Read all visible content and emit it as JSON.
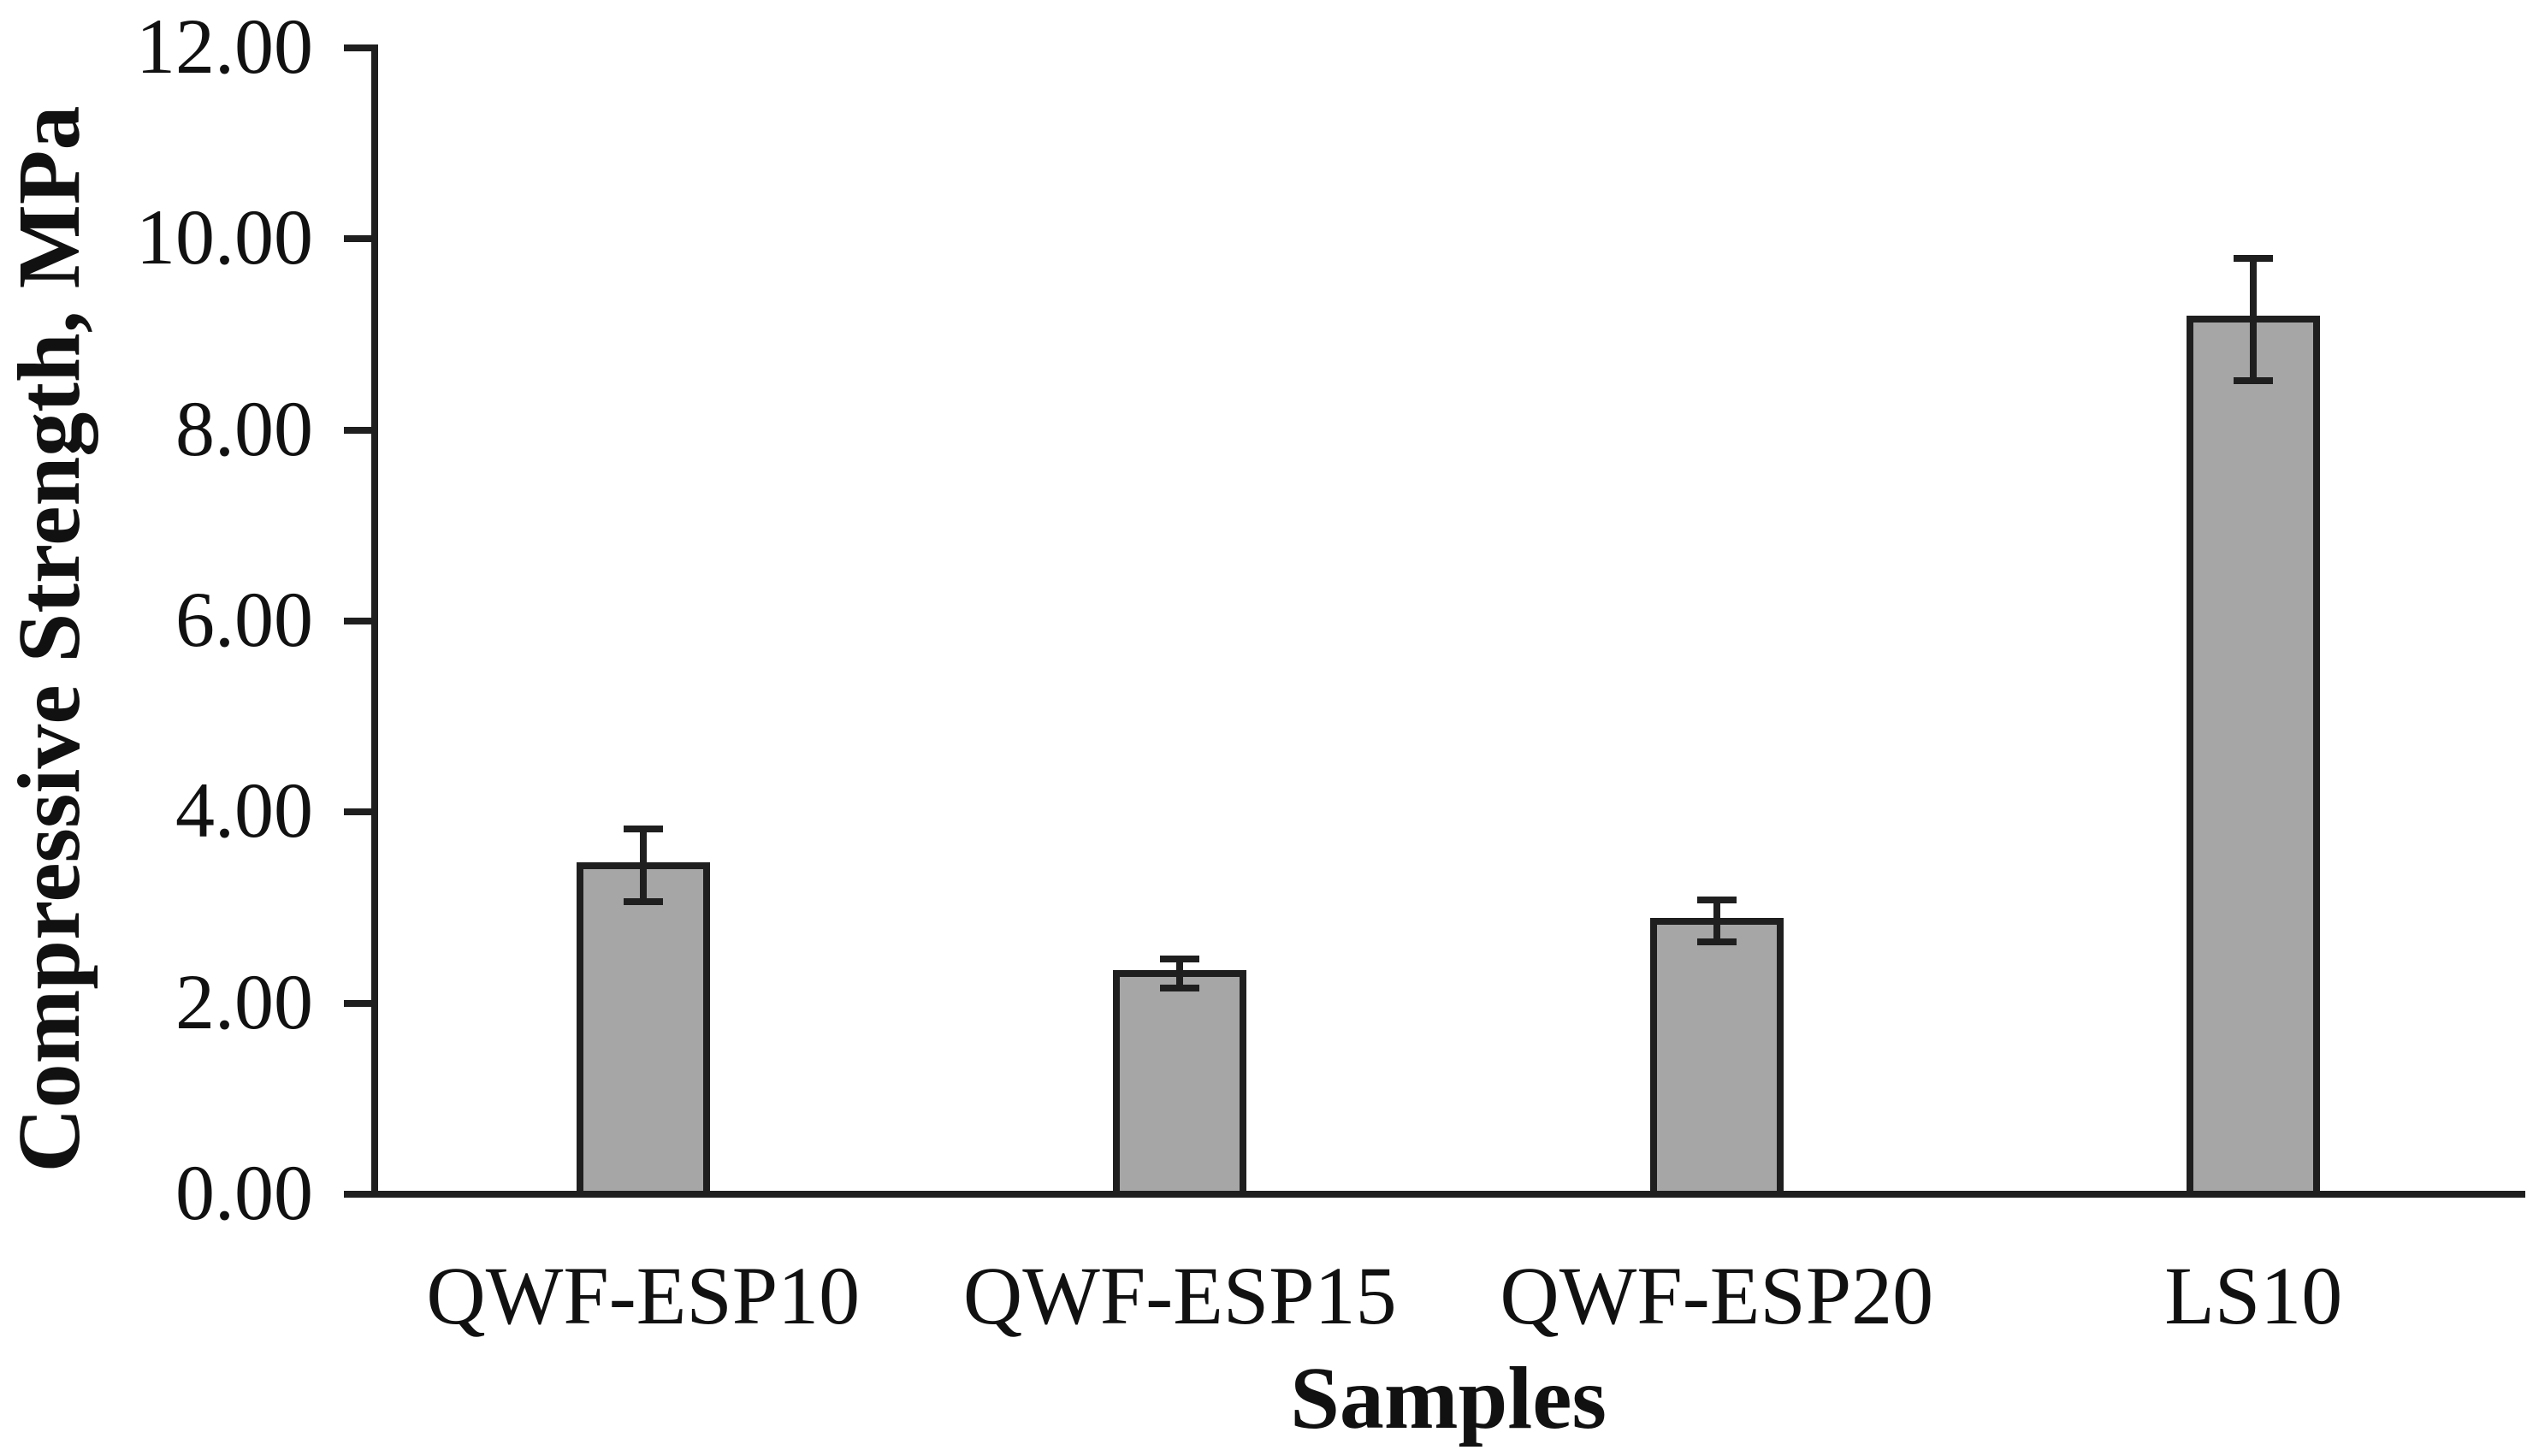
{
  "figure": {
    "background": "#ffffff",
    "text_color": "#111111"
  },
  "chart_data": {
    "type": "bar",
    "categories": [
      "QWF-ESP10",
      "QWF-ESP15",
      "QWF-ESP20",
      "LS10"
    ],
    "values": [
      3.44,
      2.31,
      2.86,
      9.16
    ],
    "error_bars": [
      0.38,
      0.15,
      0.22,
      0.64
    ],
    "xlabel": "Samples",
    "ylabel": "Compressive Strength, MPa",
    "ylim": [
      0,
      12
    ],
    "ytick_step": 2,
    "ytick_labels": [
      "0.00",
      "2.00",
      "4.00",
      "6.00",
      "8.00",
      "10.00",
      "12.00"
    ],
    "grid": false,
    "legend": "none",
    "bar_fill_color": "#a6a6a6",
    "line_color": "#1f1f1f"
  }
}
